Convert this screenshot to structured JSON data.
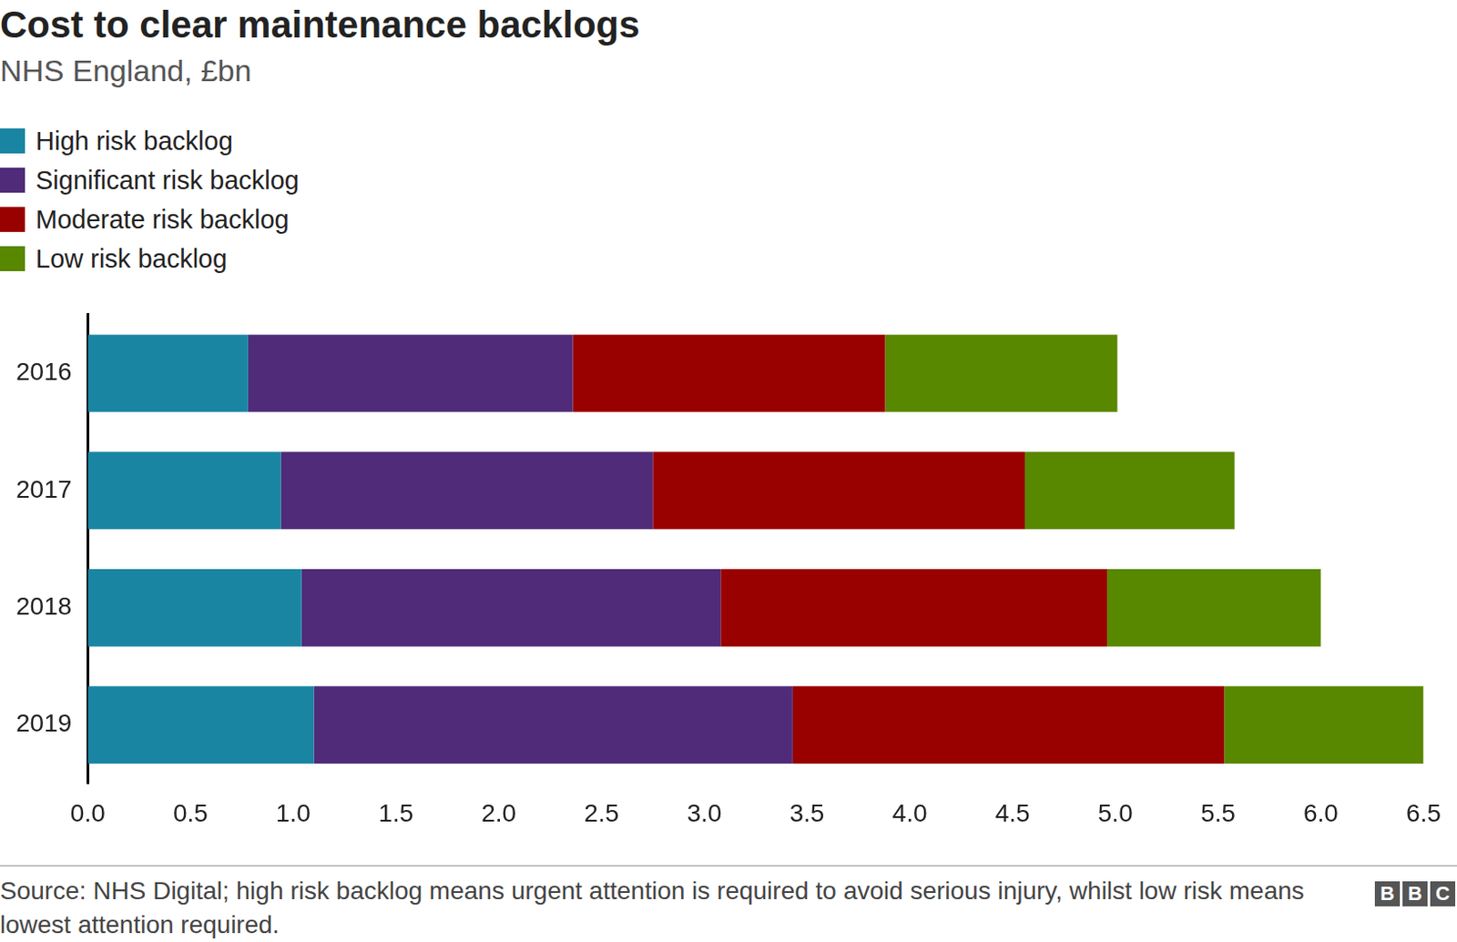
{
  "chart_data": {
    "type": "bar",
    "orientation": "horizontal",
    "stacked": true,
    "title": "Cost to clear maintenance backlogs",
    "subtitle": "NHS England, £bn",
    "categories": [
      "2016",
      "2017",
      "2018",
      "2019"
    ],
    "series": [
      {
        "name": "High risk backlog",
        "color": "#1a85a3",
        "values": [
          0.78,
          0.94,
          1.04,
          1.1
        ]
      },
      {
        "name": "Significant risk backlog",
        "color": "#4f2b79",
        "values": [
          1.58,
          1.81,
          2.04,
          2.33
        ]
      },
      {
        "name": "Moderate risk backlog",
        "color": "#990000",
        "values": [
          1.52,
          1.81,
          1.88,
          2.1
        ]
      },
      {
        "name": "Low risk backlog",
        "color": "#588700",
        "values": [
          1.13,
          1.02,
          1.04,
          0.97
        ]
      }
    ],
    "xlim": [
      0,
      6.5
    ],
    "xticks": [
      {
        "value": 0,
        "label": "0.0"
      },
      0.5,
      {
        "value": 1,
        "label": "1.0"
      },
      1.5,
      {
        "value": 2,
        "label": "2.0"
      },
      2.5,
      {
        "value": 3,
        "label": "3.0"
      },
      3.5,
      {
        "value": 4,
        "label": "4.0"
      },
      4.5,
      {
        "value": 5,
        "label": "5.0"
      },
      5.5,
      {
        "value": 6,
        "label": "6.0"
      },
      6.5
    ],
    "grid": false,
    "legend": "top-left",
    "source": "Source: NHS Digital; high risk backlog means urgent attention is required to avoid serious injury, whilst low risk means lowest attention required.",
    "logo": "BBC"
  }
}
